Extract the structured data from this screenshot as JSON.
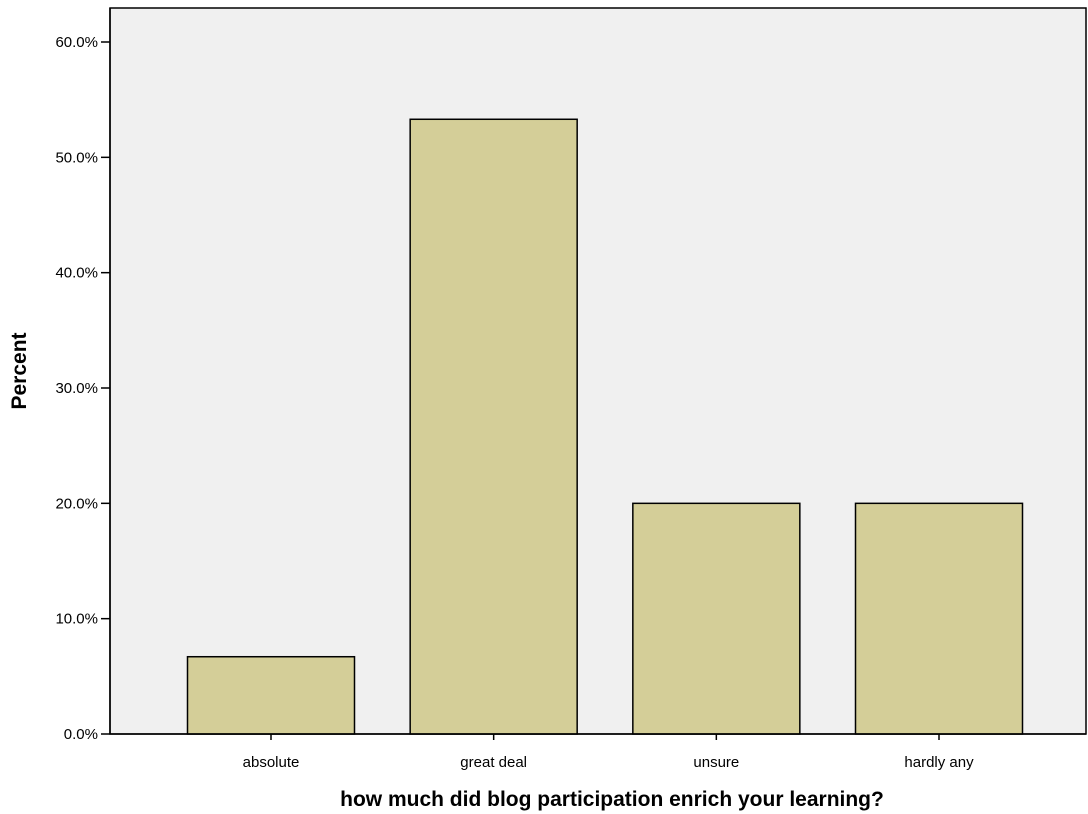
{
  "chart_data": {
    "type": "bar",
    "title": "",
    "xlabel": "how much did blog participation enrich your learning?",
    "ylabel": "Percent",
    "categories": [
      "absolute",
      "great deal",
      "unsure",
      "hardly any"
    ],
    "values": [
      6.7,
      53.3,
      20.0,
      20.0
    ],
    "ylim": [
      0,
      60
    ],
    "yticks": [
      0,
      10,
      20,
      30,
      40,
      50,
      60
    ],
    "ytick_labels": [
      "0.0%",
      "10.0%",
      "20.0%",
      "30.0%",
      "40.0%",
      "50.0%",
      "60.0%"
    ],
    "grid": false,
    "legend": "none",
    "colors": {
      "bar_fill": "#d4ce98",
      "bar_stroke": "#000000",
      "plot_background": "#f0f0f0"
    }
  }
}
